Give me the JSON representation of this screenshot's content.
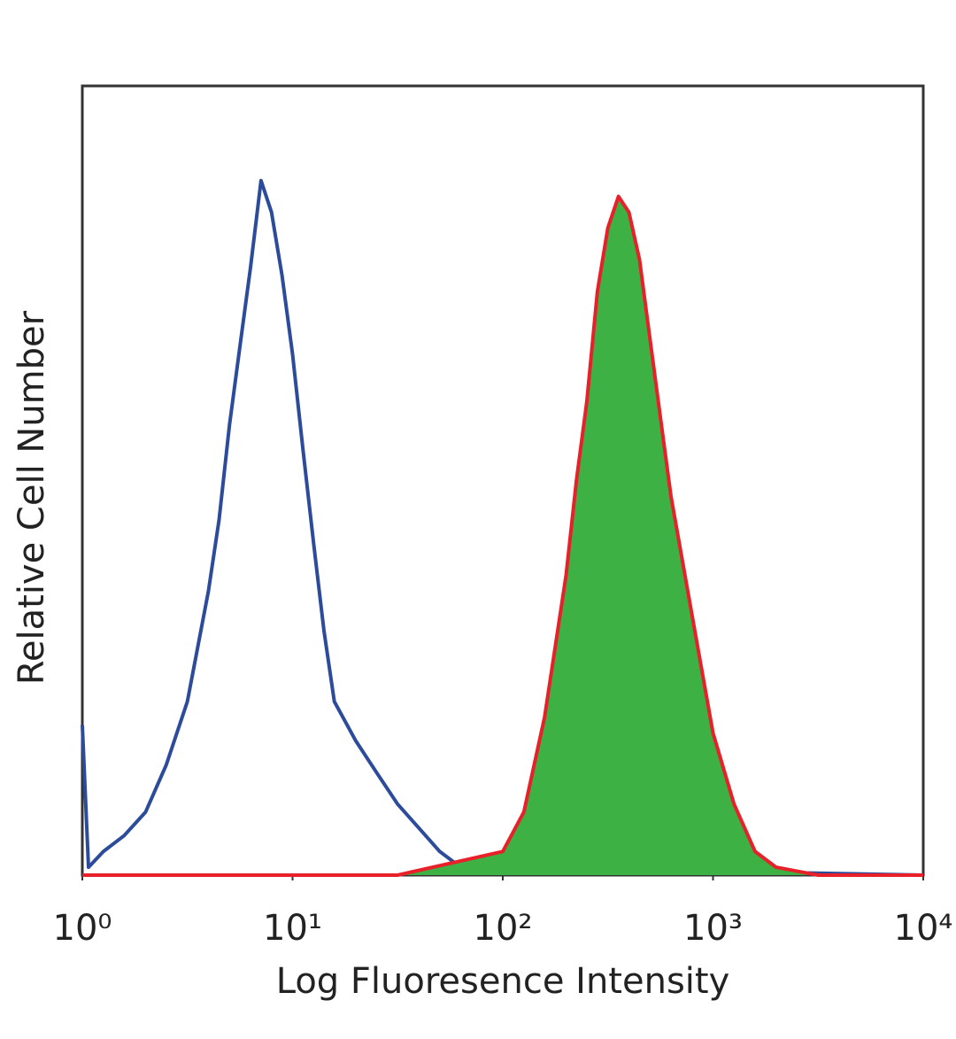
{
  "chart_data": {
    "type": "histogram-line",
    "xlabel": "Log Fluoresence Intensity",
    "ylabel": "Relative Cell Number",
    "xscale": "log",
    "xlim": [
      1,
      10000
    ],
    "ylim": [
      0,
      100
    ],
    "xticks": [
      {
        "value": 1,
        "label": "10⁰"
      },
      {
        "value": 10,
        "label": "10¹"
      },
      {
        "value": 100,
        "label": "10²"
      },
      {
        "value": 1000,
        "label": "10³"
      },
      {
        "value": 10000,
        "label": "10⁴"
      }
    ],
    "series": [
      {
        "color": "#2c4b9b",
        "filled": false,
        "x": [
          1,
          1.07,
          1.26,
          1.58,
          2.0,
          2.51,
          3.16,
          3.98,
          4.47,
          5.01,
          5.62,
          6.31,
          7.08,
          7.94,
          8.91,
          10,
          11.2,
          12.6,
          14.1,
          15.8,
          20.0,
          25.1,
          31.6,
          39.8,
          50.1,
          63.1,
          100,
          10000
        ],
        "values": [
          19,
          1,
          3,
          5,
          8,
          14,
          22,
          36,
          45,
          57,
          67,
          77,
          88,
          84,
          76,
          66,
          54,
          42,
          31,
          22,
          17,
          13,
          9,
          6,
          3,
          1,
          1,
          0
        ]
      },
      {
        "color": "#e8202a",
        "fill_color": "#3db144",
        "filled": true,
        "x": [
          1,
          31.6,
          100,
          126,
          158,
          200,
          224,
          251,
          282,
          316,
          355,
          398,
          447,
          501,
          562,
          631,
          794,
          1000,
          1259,
          1585,
          1995,
          2512,
          3162,
          10000
        ],
        "values": [
          0,
          0,
          3,
          8,
          20,
          38,
          50,
          60,
          74,
          82,
          86,
          84,
          78,
          68,
          58,
          48,
          33,
          18,
          9,
          3,
          1,
          0.5,
          0,
          0
        ]
      }
    ]
  }
}
